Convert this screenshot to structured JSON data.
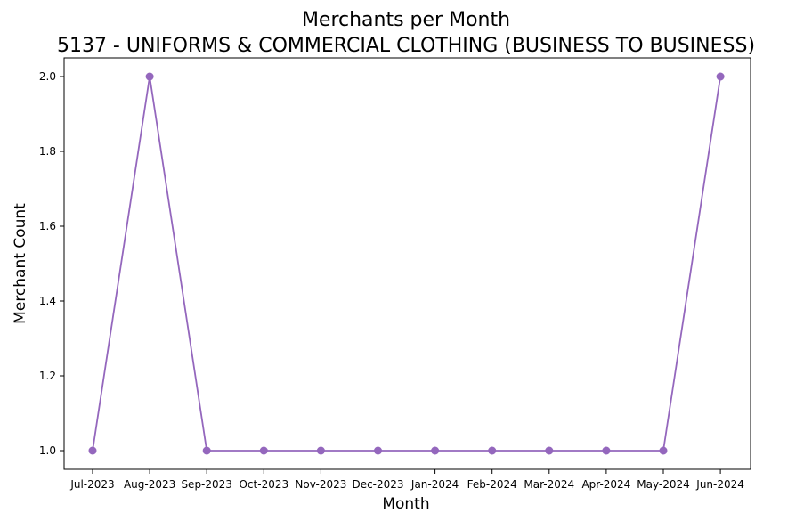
{
  "chart_data": {
    "type": "line",
    "title": "Merchants per Month",
    "subtitle": "5137 - UNIFORMS & COMMERCIAL CLOTHING (BUSINESS TO BUSINESS)",
    "xlabel": "Month",
    "ylabel": "Merchant Count",
    "categories": [
      "Jul-2023",
      "Aug-2023",
      "Sep-2023",
      "Oct-2023",
      "Nov-2023",
      "Dec-2023",
      "Jan-2024",
      "Feb-2024",
      "Mar-2024",
      "Apr-2024",
      "May-2024",
      "Jun-2024"
    ],
    "series": [
      {
        "values": [
          1,
          2,
          1,
          1,
          1,
          1,
          1,
          1,
          1,
          1,
          1,
          2
        ],
        "color": "#9467bd"
      }
    ],
    "ylim": [
      0.95,
      2.05
    ],
    "yticks": [
      "1.0",
      "1.2",
      "1.4",
      "1.6",
      "1.8",
      "2.0"
    ],
    "grid": false,
    "marker": "circle"
  }
}
